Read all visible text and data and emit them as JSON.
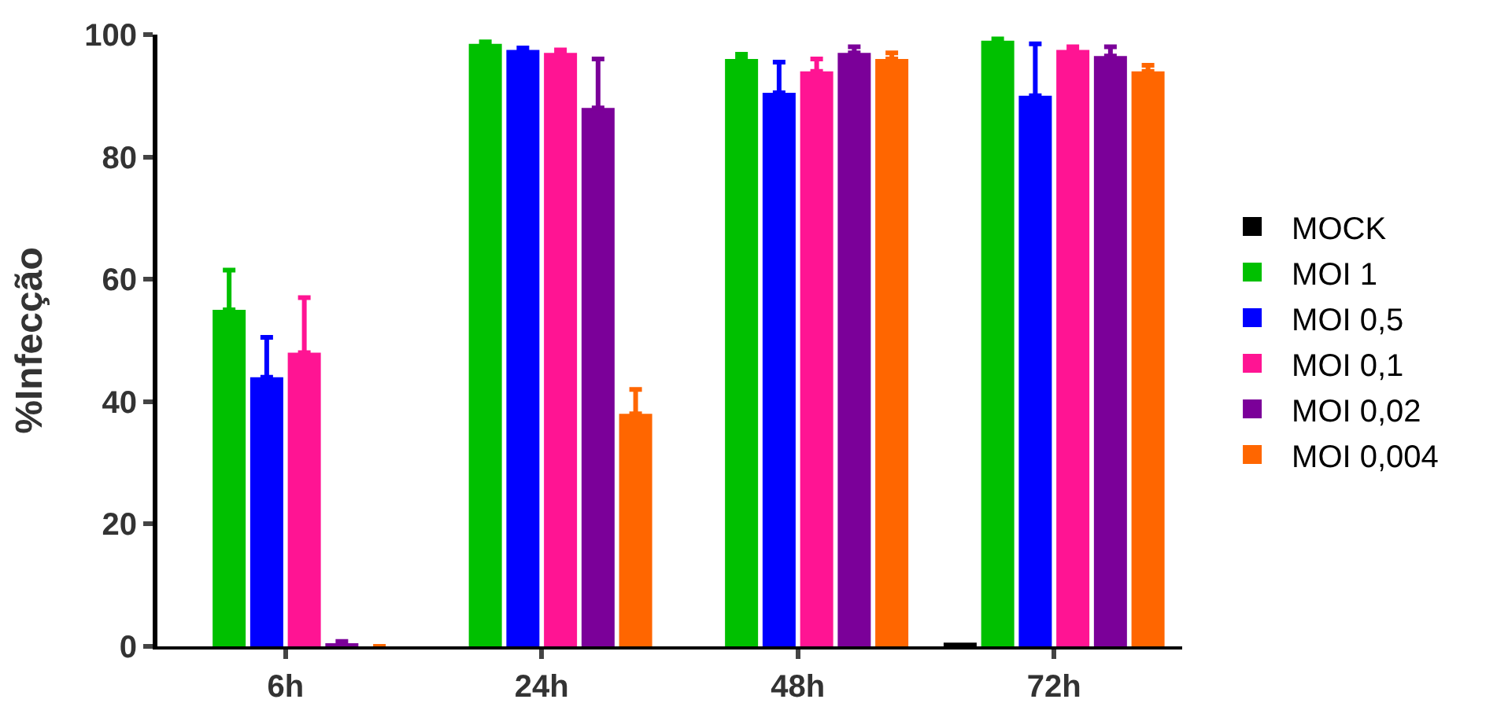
{
  "chart_data": {
    "type": "bar",
    "ylabel": "%Infecção",
    "categories": [
      "6h",
      "24h",
      "48h",
      "72h"
    ],
    "ylim": [
      0,
      100
    ],
    "yticks": [
      0,
      20,
      40,
      60,
      80,
      100
    ],
    "legend": "right",
    "series": [
      {
        "name": "MOCK",
        "color": "#000000",
        "values": [
          0,
          0,
          0,
          0.6
        ]
      },
      {
        "name": "MOI 1",
        "color": "#00c000",
        "values": [
          55,
          98.5,
          96,
          99
        ],
        "errors": [
          [
            55,
            61.5
          ],
          [
            98.5,
            98.8
          ],
          [
            96,
            96.8
          ],
          [
            99,
            99.3
          ]
        ]
      },
      {
        "name": "MOI 0,5",
        "color": "#0000ff",
        "values": [
          44,
          97.5,
          90.5,
          90
        ],
        "errors": [
          [
            44,
            50.5
          ],
          [
            97.5,
            97.8
          ],
          [
            90.5,
            95.5
          ],
          [
            90,
            98.5
          ]
        ]
      },
      {
        "name": "MOI 0,1",
        "color": "#ff1493",
        "values": [
          48,
          97,
          94,
          97.5
        ],
        "errors": [
          [
            48,
            57
          ],
          [
            97,
            97.5
          ],
          [
            94,
            96
          ],
          [
            97.5,
            98
          ]
        ]
      },
      {
        "name": "MOI 0,02",
        "color": "#7b0099",
        "values": [
          0.5,
          88,
          97,
          96.5
        ],
        "errors": [
          [
            0.5,
            0.8
          ],
          [
            88,
            96
          ],
          [
            97,
            98
          ],
          [
            96.5,
            98
          ]
        ]
      },
      {
        "name": "MOI 0,004",
        "color": "#ff6600",
        "values": [
          0,
          38,
          96,
          94
        ],
        "errors": [
          null,
          [
            38,
            42
          ],
          [
            96,
            97
          ],
          [
            94,
            95
          ]
        ]
      }
    ]
  }
}
